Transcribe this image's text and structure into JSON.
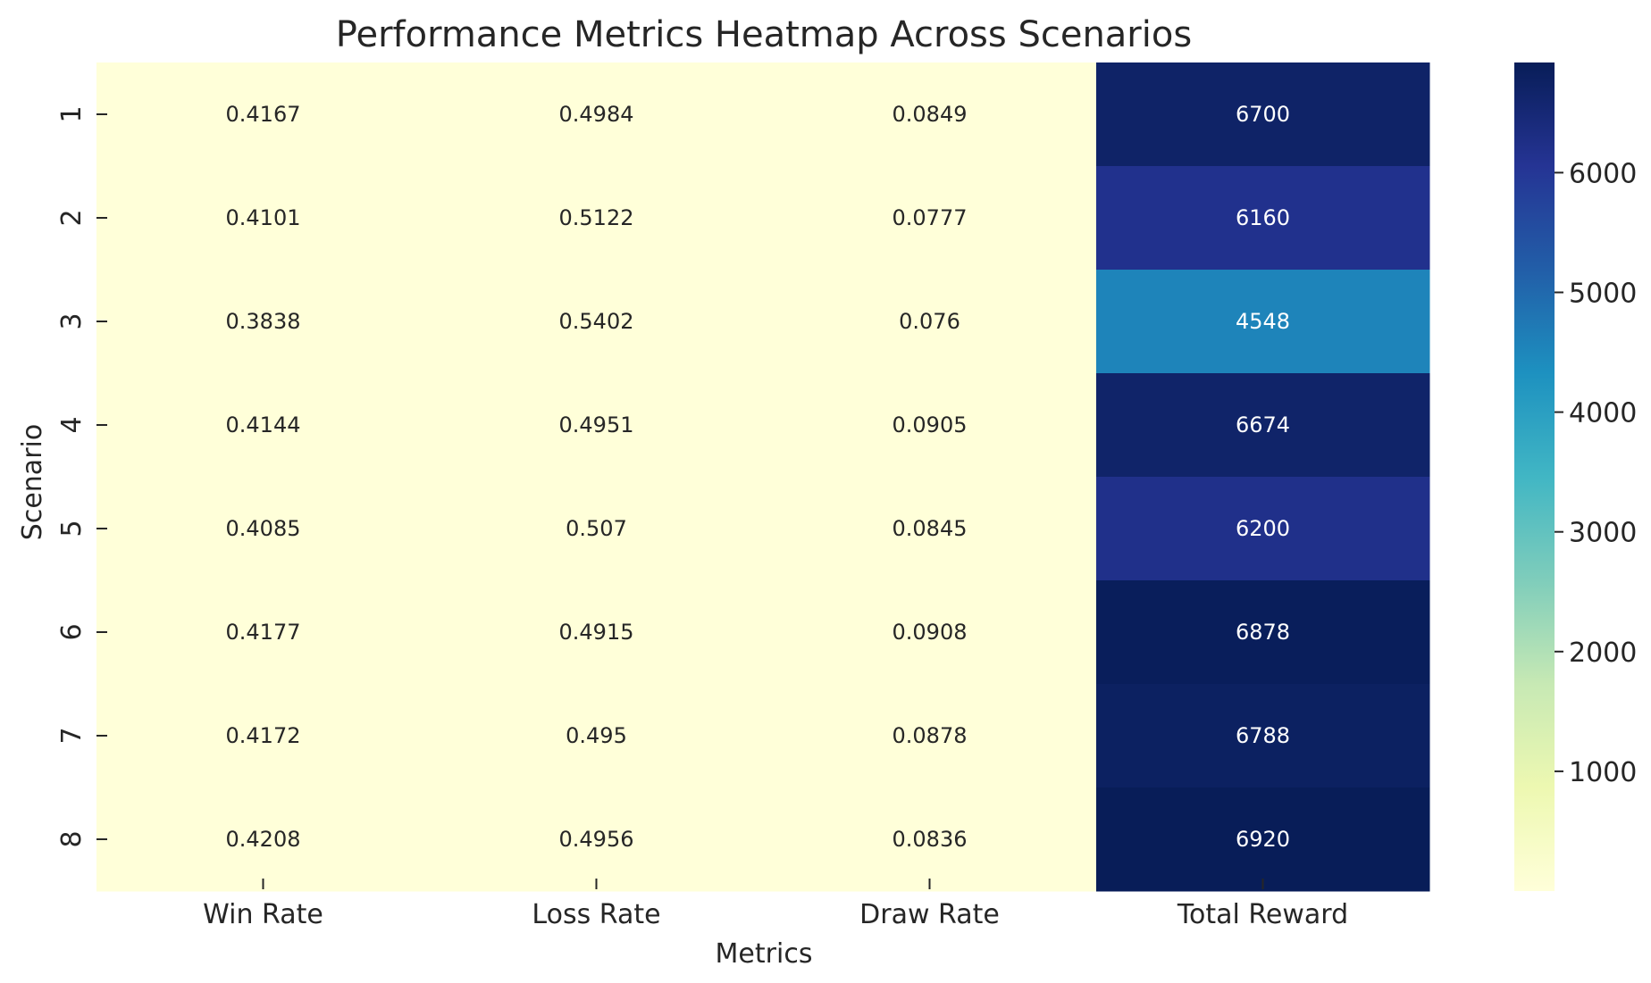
{
  "chart_data": {
    "type": "heatmap",
    "title": "Performance Metrics Heatmap Across Scenarios",
    "xlabel": "Metrics",
    "ylabel": "Scenario",
    "x_categories": [
      "Win Rate",
      "Loss Rate",
      "Draw Rate",
      "Total Reward"
    ],
    "y_categories": [
      "1",
      "2",
      "3",
      "4",
      "5",
      "6",
      "7",
      "8"
    ],
    "values": [
      [
        0.4167,
        0.4984,
        0.0849,
        6700
      ],
      [
        0.4101,
        0.5122,
        0.0777,
        6160
      ],
      [
        0.3838,
        0.5402,
        0.076,
        4548
      ],
      [
        0.4144,
        0.4951,
        0.0905,
        6674
      ],
      [
        0.4085,
        0.507,
        0.0845,
        6200
      ],
      [
        0.4177,
        0.4915,
        0.0908,
        6878
      ],
      [
        0.4172,
        0.495,
        0.0878,
        6788
      ],
      [
        0.4208,
        0.4956,
        0.0836,
        6920
      ]
    ],
    "value_labels": [
      [
        "0.4167",
        "0.4984",
        "0.0849",
        "6700"
      ],
      [
        "0.4101",
        "0.5122",
        "0.0777",
        "6160"
      ],
      [
        "0.3838",
        "0.5402",
        "0.076",
        "4548"
      ],
      [
        "0.4144",
        "0.4951",
        "0.0905",
        "6674"
      ],
      [
        "0.4085",
        "0.507",
        "0.0845",
        "6200"
      ],
      [
        "0.4177",
        "0.4915",
        "0.0908",
        "6878"
      ],
      [
        "0.4172",
        "0.495",
        "0.0878",
        "6788"
      ],
      [
        "0.4208",
        "0.4956",
        "0.0836",
        "6920"
      ]
    ],
    "colormap": "YlGnBu",
    "colorbar": {
      "range": [
        0.076,
        6920
      ],
      "ticks": [
        1000,
        2000,
        3000,
        4000,
        5000,
        6000
      ],
      "tick_labels": [
        "1000",
        "2000",
        "3000",
        "4000",
        "5000",
        "6000"
      ]
    },
    "grid": false,
    "annotations": true
  },
  "colors": {
    "text_dark": "#262626",
    "text_light": "#ffffff",
    "colormap_stops": [
      "#ffffd9",
      "#edf8b1",
      "#c7e9b4",
      "#7fcdbb",
      "#41b6c4",
      "#1d91c0",
      "#225ea8",
      "#253494",
      "#081d58"
    ]
  }
}
